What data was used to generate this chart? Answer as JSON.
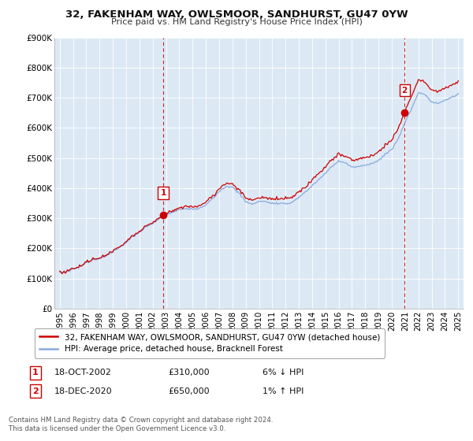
{
  "title": "32, FAKENHAM WAY, OWLSMOOR, SANDHURST, GU47 0YW",
  "subtitle": "Price paid vs. HM Land Registry's House Price Index (HPI)",
  "legend_line1": "32, FAKENHAM WAY, OWLSMOOR, SANDHURST, GU47 0YW (detached house)",
  "legend_line2": "HPI: Average price, detached house, Bracknell Forest",
  "footnote": "Contains HM Land Registry data © Crown copyright and database right 2024.\nThis data is licensed under the Open Government Licence v3.0.",
  "sale1_label": "1",
  "sale1_date": "18-OCT-2002",
  "sale1_price": "£310,000",
  "sale1_hpi": "6% ↓ HPI",
  "sale2_label": "2",
  "sale2_date": "18-DEC-2020",
  "sale2_price": "£650,000",
  "sale2_hpi": "1% ↑ HPI",
  "hpi_color": "#88aadd",
  "price_color": "#cc0000",
  "marker_color": "#cc0000",
  "sale1_x": 2002.79,
  "sale1_y": 310000,
  "sale2_x": 2020.96,
  "sale2_y": 650000,
  "ylim": [
    0,
    900000
  ],
  "xlim_min": 1994.6,
  "xlim_max": 2025.4,
  "yticks": [
    0,
    100000,
    200000,
    300000,
    400000,
    500000,
    600000,
    700000,
    800000,
    900000
  ],
  "ytick_labels": [
    "£0",
    "£100K",
    "£200K",
    "£300K",
    "£400K",
    "£500K",
    "£600K",
    "£700K",
    "£800K",
    "£900K"
  ],
  "xticks": [
    1995,
    1996,
    1997,
    1998,
    1999,
    2000,
    2001,
    2002,
    2003,
    2004,
    2005,
    2006,
    2007,
    2008,
    2009,
    2010,
    2011,
    2012,
    2013,
    2014,
    2015,
    2016,
    2017,
    2018,
    2019,
    2020,
    2021,
    2022,
    2023,
    2024,
    2025
  ],
  "bg_color": "#ffffff",
  "plot_bg_color": "#dce9f5",
  "grid_color": "#ffffff"
}
